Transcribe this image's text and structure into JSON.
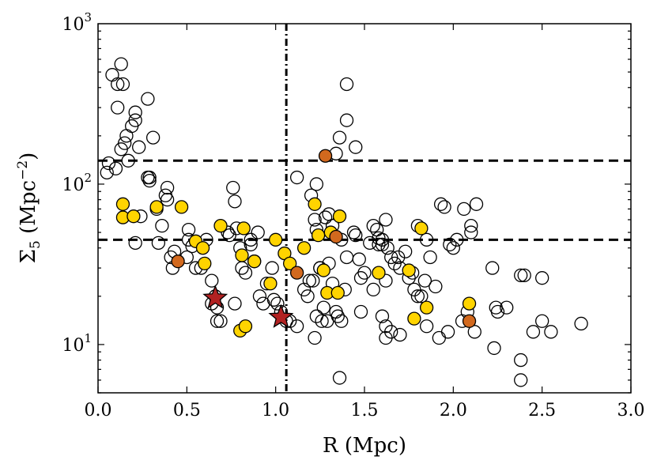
{
  "chart_data": {
    "type": "scatter",
    "title": "",
    "xlabel": "R (Mpc)",
    "ylabel": "Σ5 (Mpc^-2)",
    "ylabel_parts": {
      "symbol": "Σ",
      "subscript": "5",
      "open": " (Mpc",
      "superscript": "−2",
      "close": ")"
    },
    "xlim": [
      0.0,
      3.0
    ],
    "ylim": [
      5,
      1000
    ],
    "yscale": "log",
    "grid": false,
    "x_ticks": [
      0.0,
      0.5,
      1.0,
      1.5,
      2.0,
      2.5,
      3.0
    ],
    "x_tick_labels": [
      "0.0",
      "0.5",
      "1.0",
      "1.5",
      "2.0",
      "2.5",
      "3.0"
    ],
    "y_tick_labels": [
      {
        "value": 10,
        "base": "10",
        "exp": "1"
      },
      {
        "value": 100,
        "base": "10",
        "exp": "2"
      },
      {
        "value": 1000,
        "base": "10",
        "exp": "3"
      }
    ],
    "reference_lines": [
      {
        "orientation": "horizontal",
        "value": 140,
        "style": "dashed"
      },
      {
        "orientation": "horizontal",
        "value": 45,
        "style": "dashed"
      },
      {
        "orientation": "vertical",
        "value": 1.06,
        "style": "dashdot"
      }
    ],
    "colors": {
      "open": "#ffffff",
      "yellow": "#ffd400",
      "orange": "#d2691e",
      "star": "#b22222"
    },
    "series": [
      {
        "name": "open circles",
        "marker": "circle-open",
        "points": [
          [
            0.08,
            480
          ],
          [
            0.11,
            420
          ],
          [
            0.13,
            560
          ],
          [
            0.14,
            420
          ],
          [
            0.11,
            300
          ],
          [
            0.16,
            200
          ],
          [
            0.15,
            180
          ],
          [
            0.19,
            230
          ],
          [
            0.21,
            250
          ],
          [
            0.21,
            280
          ],
          [
            0.23,
            170
          ],
          [
            0.28,
            340
          ],
          [
            0.29,
            110
          ],
          [
            0.29,
            105
          ],
          [
            0.13,
            165
          ],
          [
            0.06,
            135
          ],
          [
            0.05,
            118
          ],
          [
            0.1,
            125
          ],
          [
            0.17,
            140
          ],
          [
            0.31,
            195
          ],
          [
            0.28,
            110
          ],
          [
            0.38,
            85
          ],
          [
            0.39,
            80
          ],
          [
            0.39,
            95
          ],
          [
            0.33,
            70
          ],
          [
            0.36,
            55
          ],
          [
            0.34,
            43
          ],
          [
            0.41,
            35
          ],
          [
            0.42,
            30
          ],
          [
            0.43,
            38
          ],
          [
            0.21,
            43
          ],
          [
            0.24,
            63
          ],
          [
            0.5,
            35
          ],
          [
            0.51,
            45
          ],
          [
            0.51,
            52
          ],
          [
            0.53,
            41
          ],
          [
            0.55,
            30
          ],
          [
            0.58,
            30
          ],
          [
            0.61,
            45
          ],
          [
            0.64,
            25
          ],
          [
            0.66,
            20
          ],
          [
            0.67,
            17
          ],
          [
            0.67,
            14
          ],
          [
            0.69,
            14
          ],
          [
            0.64,
            18
          ],
          [
            0.73,
            50
          ],
          [
            0.74,
            48
          ],
          [
            0.76,
            95
          ],
          [
            0.77,
            78
          ],
          [
            0.77,
            18
          ],
          [
            0.78,
            53
          ],
          [
            0.8,
            40
          ],
          [
            0.81,
            30
          ],
          [
            0.83,
            28
          ],
          [
            0.86,
            42
          ],
          [
            0.86,
            45
          ],
          [
            0.88,
            33
          ],
          [
            0.9,
            50
          ],
          [
            0.91,
            20
          ],
          [
            0.93,
            18
          ],
          [
            0.95,
            24
          ],
          [
            0.98,
            30
          ],
          [
            0.99,
            19
          ],
          [
            1.01,
            18
          ],
          [
            1.03,
            16
          ],
          [
            1.06,
            14
          ],
          [
            1.08,
            14
          ],
          [
            1.12,
            13
          ],
          [
            1.12,
            110
          ],
          [
            1.16,
            22
          ],
          [
            1.18,
            20
          ],
          [
            1.19,
            25
          ],
          [
            1.21,
            25
          ],
          [
            1.22,
            11
          ],
          [
            1.23,
            15
          ],
          [
            1.25,
            30
          ],
          [
            1.26,
            14
          ],
          [
            1.27,
            17
          ],
          [
            1.29,
            14
          ],
          [
            1.3,
            32
          ],
          [
            1.32,
            24
          ],
          [
            1.34,
            16
          ],
          [
            1.35,
            15
          ],
          [
            1.37,
            14
          ],
          [
            1.39,
            22
          ],
          [
            1.22,
            60
          ],
          [
            1.23,
            52
          ],
          [
            1.25,
            30
          ],
          [
            1.28,
            62
          ],
          [
            1.3,
            65
          ],
          [
            1.32,
            55
          ],
          [
            1.34,
            155
          ],
          [
            1.36,
            195
          ],
          [
            1.4,
            250
          ],
          [
            1.4,
            420
          ],
          [
            1.45,
            170
          ],
          [
            1.37,
            45
          ],
          [
            1.4,
            35
          ],
          [
            1.44,
            50
          ],
          [
            1.45,
            48
          ],
          [
            1.47,
            34
          ],
          [
            1.48,
            26
          ],
          [
            1.5,
            28
          ],
          [
            1.53,
            43
          ],
          [
            1.55,
            55
          ],
          [
            1.57,
            52
          ],
          [
            1.58,
            46
          ],
          [
            1.6,
            45
          ],
          [
            1.62,
            60
          ],
          [
            1.63,
            40
          ],
          [
            1.65,
            35
          ],
          [
            1.67,
            32
          ],
          [
            1.69,
            35
          ],
          [
            1.7,
            30
          ],
          [
            1.73,
            38
          ],
          [
            1.75,
            26
          ],
          [
            1.77,
            28
          ],
          [
            1.78,
            22
          ],
          [
            1.8,
            20
          ],
          [
            1.8,
            55
          ],
          [
            1.82,
            20
          ],
          [
            1.84,
            25
          ],
          [
            1.85,
            45
          ],
          [
            1.87,
            35
          ],
          [
            1.9,
            23
          ],
          [
            1.93,
            75
          ],
          [
            1.95,
            72
          ],
          [
            1.98,
            42
          ],
          [
            2.0,
            40
          ],
          [
            2.02,
            45
          ],
          [
            2.06,
            70
          ],
          [
            2.1,
            55
          ],
          [
            2.1,
            50
          ],
          [
            2.13,
            75
          ],
          [
            2.22,
            30
          ],
          [
            2.24,
            17
          ],
          [
            2.25,
            16
          ],
          [
            2.3,
            17
          ],
          [
            2.38,
            27
          ],
          [
            2.4,
            27
          ],
          [
            2.45,
            12
          ],
          [
            2.5,
            26
          ],
          [
            2.5,
            14
          ],
          [
            2.55,
            12
          ],
          [
            2.72,
            13.5
          ],
          [
            1.36,
            6.2
          ],
          [
            2.38,
            8
          ],
          [
            2.38,
            6
          ],
          [
            2.23,
            9.5
          ],
          [
            1.65,
            12
          ],
          [
            1.7,
            11.5
          ],
          [
            1.85,
            13
          ],
          [
            1.92,
            11
          ],
          [
            1.97,
            12
          ],
          [
            2.05,
            14
          ],
          [
            2.08,
            16
          ],
          [
            2.12,
            12
          ],
          [
            1.2,
            85
          ],
          [
            1.23,
            100
          ],
          [
            1.58,
            42
          ],
          [
            1.6,
            42
          ],
          [
            1.62,
            25
          ],
          [
            1.6,
            15
          ],
          [
            1.62,
            13
          ],
          [
            1.62,
            11
          ],
          [
            1.48,
            16
          ],
          [
            1.55,
            22
          ]
        ]
      },
      {
        "name": "yellow circles",
        "marker": "circle-filled",
        "color": "#ffd400",
        "points": [
          [
            0.14,
            75
          ],
          [
            0.14,
            62
          ],
          [
            0.2,
            63
          ],
          [
            0.33,
            72
          ],
          [
            0.47,
            72
          ],
          [
            0.55,
            44
          ],
          [
            0.59,
            40
          ],
          [
            0.6,
            32
          ],
          [
            0.69,
            55
          ],
          [
            0.81,
            36
          ],
          [
            0.82,
            53
          ],
          [
            0.88,
            33
          ],
          [
            0.8,
            12.2
          ],
          [
            0.83,
            13
          ],
          [
            0.97,
            24
          ],
          [
            1.0,
            45
          ],
          [
            1.05,
            37
          ],
          [
            1.08,
            32
          ],
          [
            1.16,
            40
          ],
          [
            1.22,
            75
          ],
          [
            1.24,
            48
          ],
          [
            1.27,
            29
          ],
          [
            1.29,
            21
          ],
          [
            1.31,
            50
          ],
          [
            1.35,
            21
          ],
          [
            1.36,
            63
          ],
          [
            1.58,
            28
          ],
          [
            1.75,
            29
          ],
          [
            1.78,
            14.5
          ],
          [
            1.82,
            53
          ],
          [
            1.85,
            17
          ],
          [
            2.09,
            18
          ]
        ]
      },
      {
        "name": "orange circles",
        "marker": "circle-filled",
        "color": "#d2691e",
        "points": [
          [
            0.45,
            33
          ],
          [
            1.12,
            28
          ],
          [
            1.28,
            150
          ],
          [
            1.34,
            47
          ],
          [
            2.09,
            14
          ]
        ]
      },
      {
        "name": "stars",
        "marker": "star",
        "color": "#b22222",
        "points": [
          [
            0.66,
            19.5
          ],
          [
            1.03,
            14.8
          ]
        ]
      }
    ]
  }
}
